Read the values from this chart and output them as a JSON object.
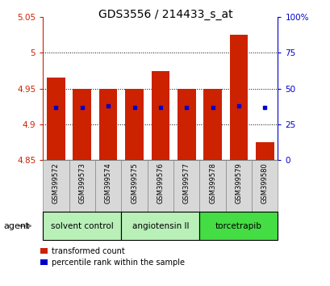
{
  "title": "GDS3556 / 214433_s_at",
  "samples": [
    "GSM399572",
    "GSM399573",
    "GSM399574",
    "GSM399575",
    "GSM399576",
    "GSM399577",
    "GSM399578",
    "GSM399579",
    "GSM399580"
  ],
  "bar_bottom": 4.85,
  "bar_tops": [
    4.965,
    4.95,
    4.95,
    4.95,
    4.975,
    4.95,
    4.95,
    5.025,
    4.875
  ],
  "percentile_values": [
    37,
    37,
    38,
    37,
    37,
    37,
    37,
    38,
    37
  ],
  "ylim_left": [
    4.85,
    5.05
  ],
  "ylim_right": [
    0,
    100
  ],
  "yticks_left": [
    4.85,
    4.9,
    4.95,
    5.0,
    5.05
  ],
  "yticks_right": [
    0,
    25,
    50,
    75,
    100
  ],
  "ytick_labels_left": [
    "4.85",
    "4.9",
    "4.95",
    "5",
    "5.05"
  ],
  "ytick_labels_right": [
    "0",
    "25",
    "50",
    "75",
    "100%"
  ],
  "bar_color": "#cc2200",
  "dot_color": "#0000cc",
  "axis_color_left": "#cc2200",
  "axis_color_right": "#0000cc",
  "agent_label": "agent",
  "legend": [
    "transformed count",
    "percentile rank within the sample"
  ],
  "bar_width": 0.7,
  "group_configs": [
    {
      "indices": [
        0,
        1,
        2
      ],
      "label": "solvent control",
      "color": "#b8f0b8"
    },
    {
      "indices": [
        3,
        4,
        5
      ],
      "label": "angiotensin II",
      "color": "#b8f0b8"
    },
    {
      "indices": [
        6,
        7,
        8
      ],
      "label": "torcetrapib",
      "color": "#44dd44"
    }
  ],
  "label_bg_color": "#d8d8d8",
  "label_border_color": "#888888"
}
